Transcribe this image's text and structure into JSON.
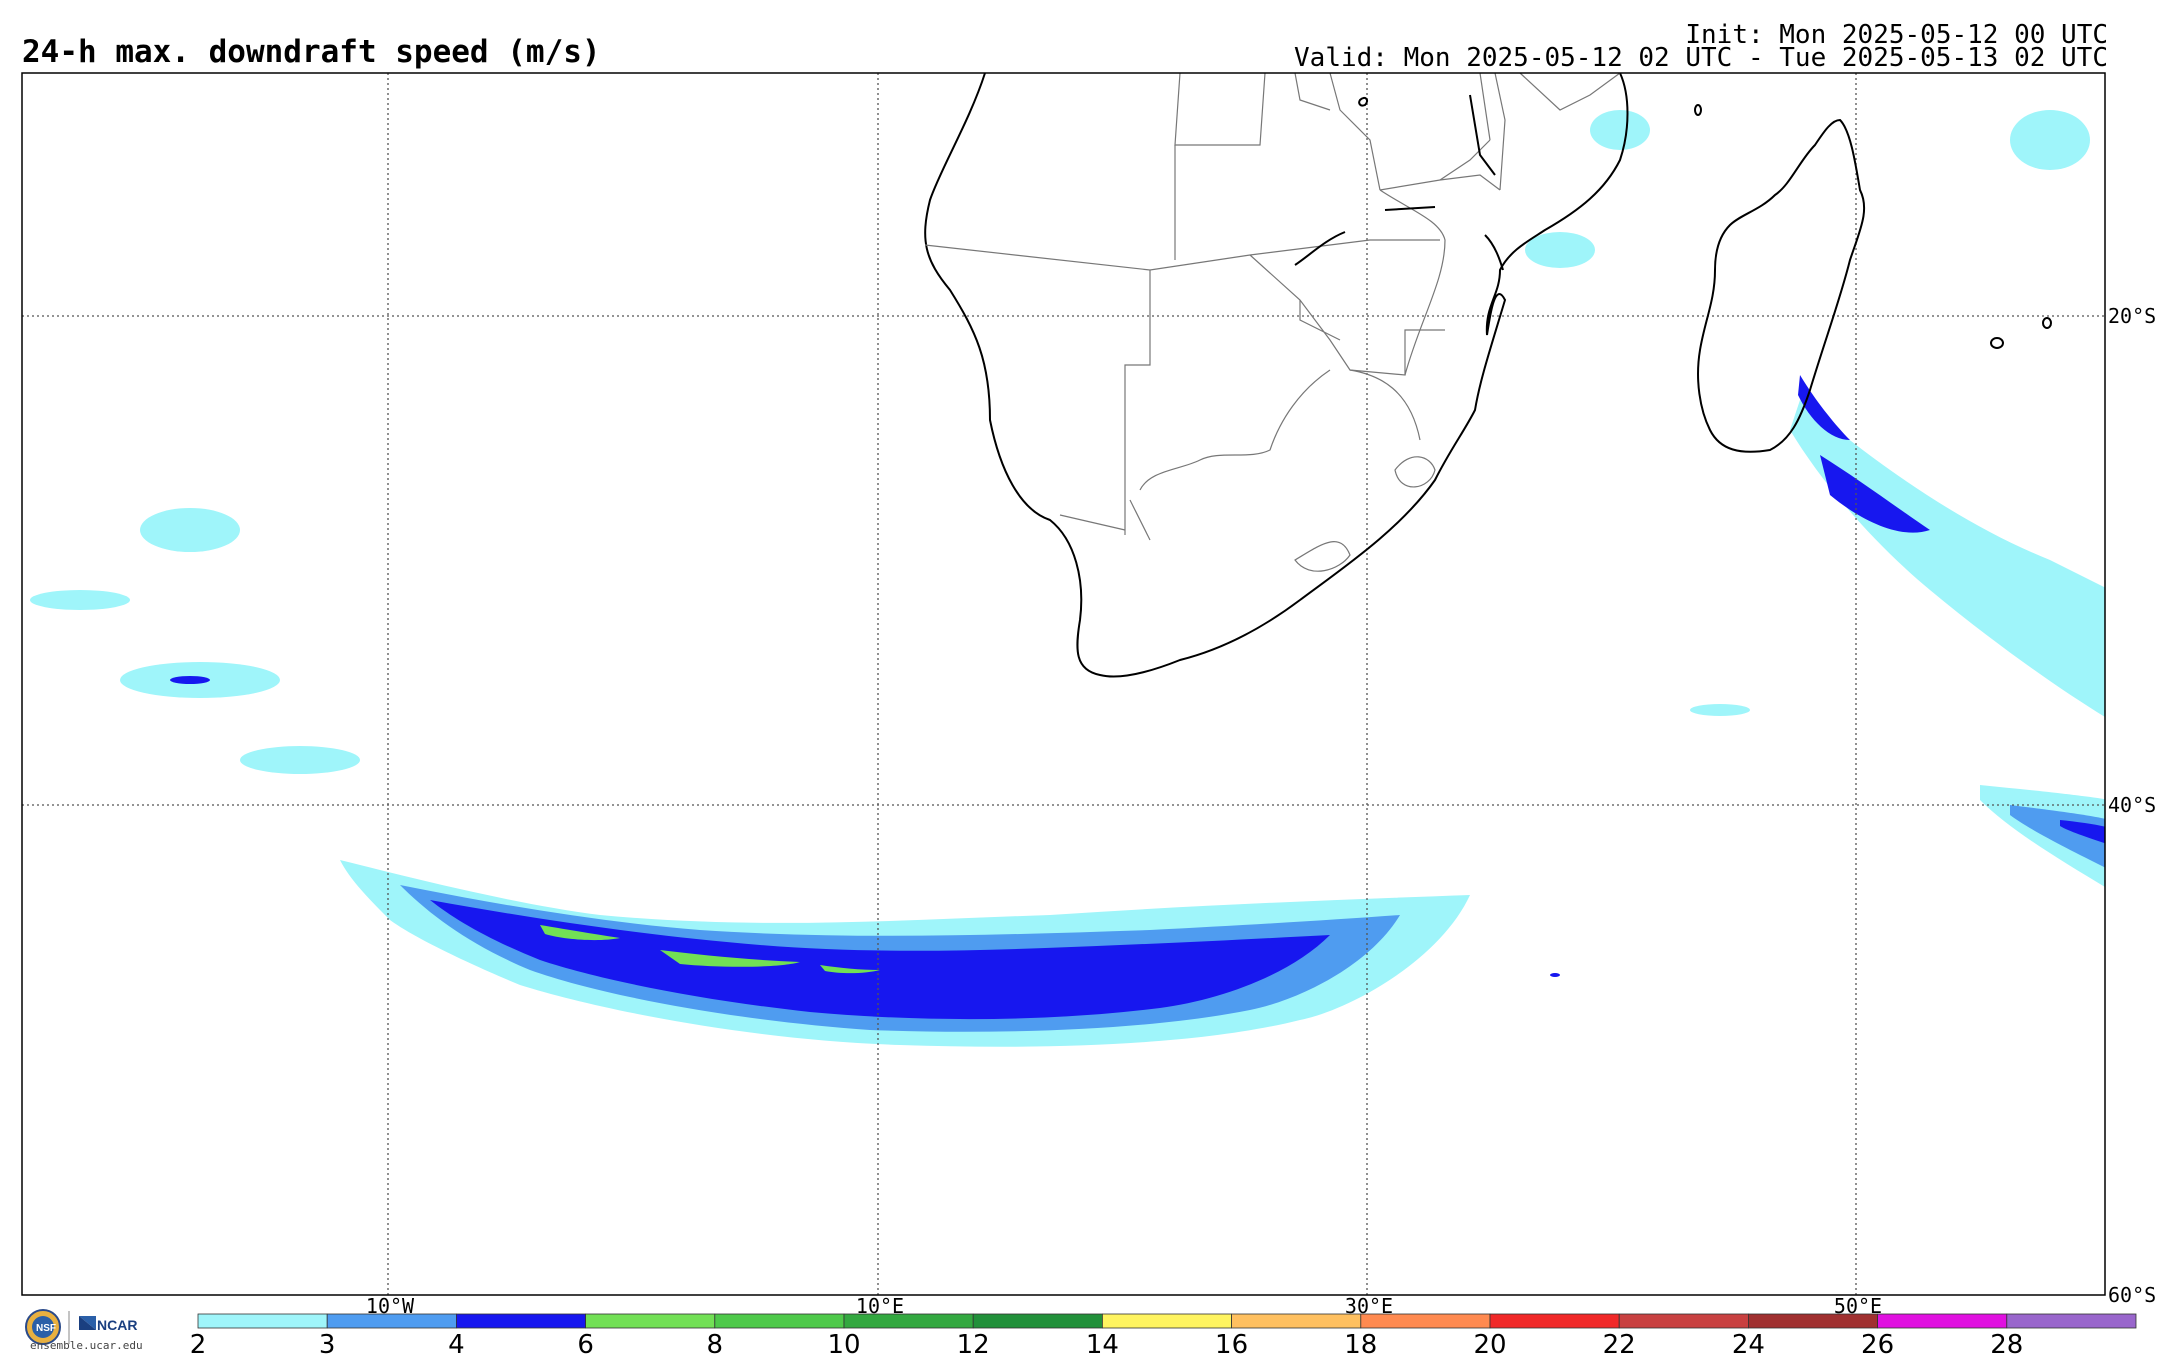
{
  "header": {
    "title": "24-h max. downdraft speed (m/s)",
    "init": "Init: Mon 2025-05-12 00 UTC",
    "valid": "Valid: Mon 2025-05-12 02 UTC - Tue 2025-05-13 02 UTC"
  },
  "map": {
    "region": "Southern Africa / South Atlantic / SW Indian Ocean",
    "lat_labels": [
      "20°S",
      "40°S",
      "60°S"
    ],
    "lon_labels": [
      "10°W",
      "10°E",
      "30°E",
      "50°E"
    ],
    "gridlines": "dotted",
    "features": [
      "coastlines",
      "country-borders",
      "Madagascar"
    ],
    "colors": {
      "light_cyan": "#9ff5fa",
      "steel_blue": "#4f9cf0",
      "blue": "#1717ef",
      "light_green": "#72e055",
      "frame": "#000000"
    }
  },
  "colorbar": {
    "ticks": [
      "2",
      "3",
      "4",
      "6",
      "8",
      "10",
      "12",
      "14",
      "16",
      "18",
      "20",
      "22",
      "24",
      "26",
      "28"
    ],
    "colors": [
      "#9ff5fa",
      "#4f9cf0",
      "#1717ef",
      "#72e055",
      "#4ec94a",
      "#33a840",
      "#21903a",
      "#fff460",
      "#ffc060",
      "#ff8a50",
      "#f02828",
      "#c84040",
      "#a03030",
      "#e010e0",
      "#9966cc"
    ]
  },
  "branding": {
    "logo": "NSF NCAR",
    "url": "ensemble.ucar.edu"
  }
}
